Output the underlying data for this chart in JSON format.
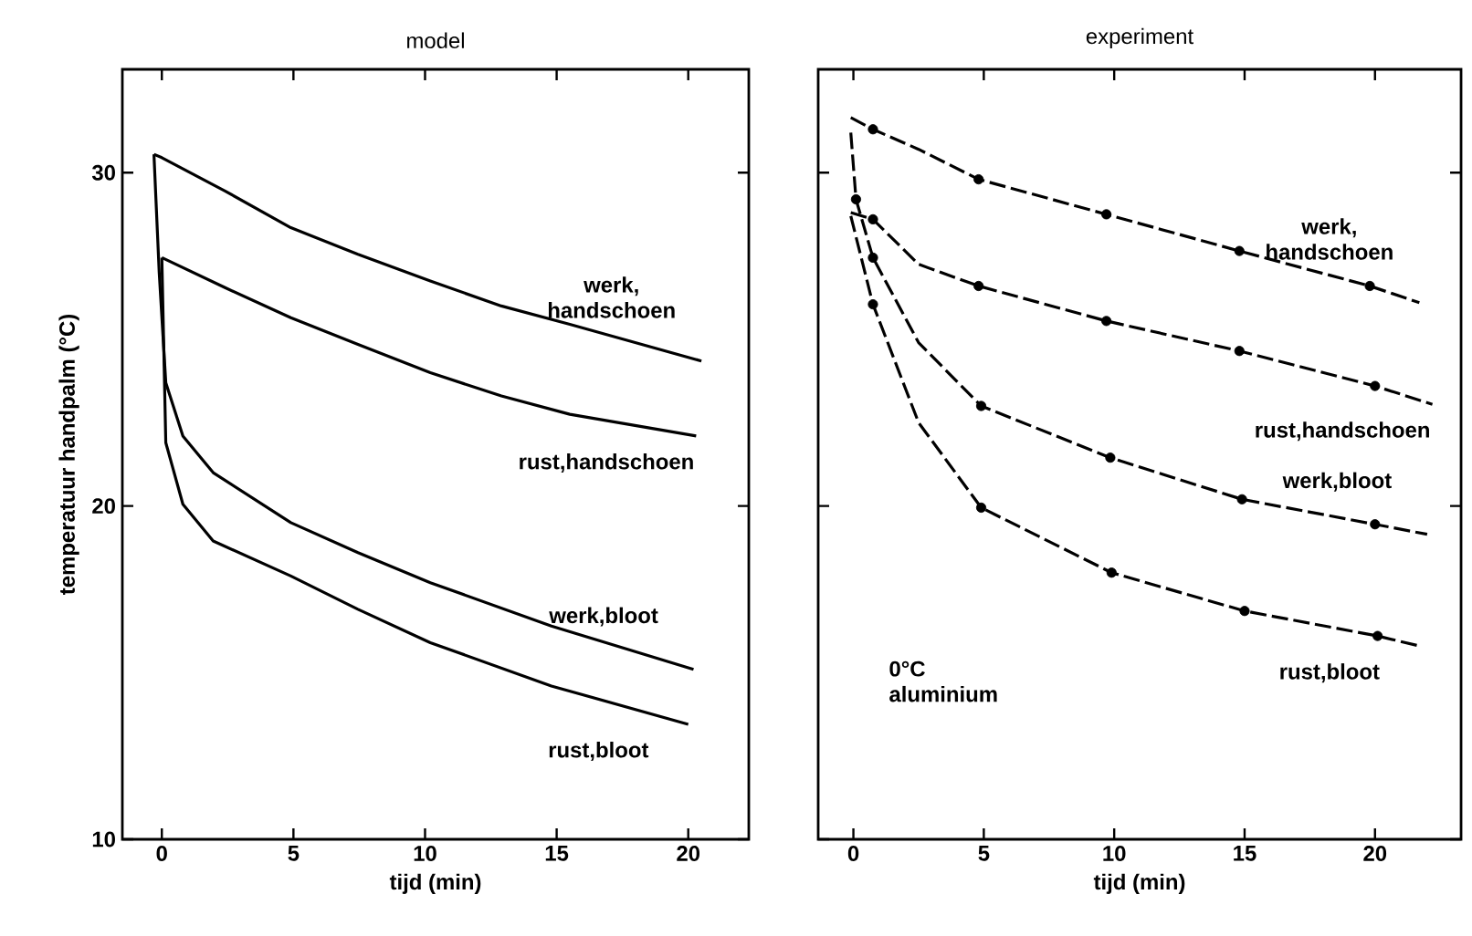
{
  "chart_data": [
    {
      "type": "line",
      "title": "model",
      "xlabel": "tijd (min)",
      "ylabel": "temperatuur handpalm (°C)",
      "xlim": [
        -1.5,
        22.3
      ],
      "ylim": [
        10,
        33.1
      ],
      "xticks": [
        0,
        5,
        10,
        15,
        20
      ],
      "yticks": [
        10,
        20,
        30
      ],
      "line_style": "solid",
      "marker": "none",
      "series": [
        {
          "name": "werk, handschoen",
          "color": "#000000",
          "x": [
            -0.3,
            0,
            2.4,
            4.9,
            7.45,
            10.2,
            12.9,
            15.5,
            20.5
          ],
          "values": [
            30.55,
            30.45,
            29.45,
            28.35,
            27.55,
            26.75,
            26.0,
            25.45,
            24.35
          ]
        },
        {
          "name": "rust,handschoen",
          "color": "#000000",
          "x": [
            0,
            2.4,
            4.9,
            7.45,
            10.2,
            12.9,
            15.5,
            20.3
          ],
          "values": [
            27.45,
            26.55,
            25.65,
            24.85,
            24.0,
            23.3,
            22.75,
            22.1
          ]
        },
        {
          "name": "werk,bloot",
          "color": "#000000",
          "x": [
            -0.3,
            -0.1,
            0.15,
            0.8,
            1.95,
            4.9,
            7.45,
            10.2,
            14.8,
            20.2
          ],
          "values": [
            30.55,
            27.0,
            23.7,
            22.1,
            21.0,
            19.5,
            18.6,
            17.7,
            16.4,
            15.1
          ]
        },
        {
          "name": "rust,bloot",
          "color": "#000000",
          "x": [
            0,
            0.15,
            0.8,
            1.95,
            4.9,
            7.45,
            10.2,
            14.8,
            20.0
          ],
          "values": [
            27.45,
            21.9,
            20.05,
            18.95,
            17.9,
            16.9,
            15.9,
            14.6,
            13.45
          ]
        }
      ]
    },
    {
      "type": "line",
      "title": "experiment",
      "xlabel": "tijd (min)",
      "xlim": [
        -1.35,
        23.3
      ],
      "ylim": [
        10,
        33.1
      ],
      "xticks": [
        0,
        5,
        10,
        15,
        20
      ],
      "yticks": [
        10,
        20,
        30
      ],
      "tick_labels": "x",
      "annotations": [
        "0°C aluminium"
      ],
      "series": [
        {
          "name": "werk, handschoen",
          "color": "#000000",
          "line_style": "dashed",
          "marker": "none",
          "x": [
            -0.1,
            0.75,
            2.5,
            4.8,
            9.7,
            14.8,
            19.8,
            21.7
          ],
          "values": [
            31.65,
            31.3,
            30.7,
            29.8,
            28.75,
            27.65,
            26.6,
            26.1
          ]
        },
        {
          "name": "rust,handschoen",
          "color": "#000000",
          "line_style": "dashed",
          "marker": "none",
          "x": [
            -0.1,
            0.75,
            2.5,
            4.8,
            9.7,
            14.8,
            20.0,
            22.2
          ],
          "values": [
            28.8,
            28.6,
            27.25,
            26.6,
            25.55,
            24.65,
            23.6,
            23.05
          ]
        },
        {
          "name": "werk,bloot",
          "color": "#000000",
          "line_style": "dashed",
          "marker": "none",
          "x": [
            -0.1,
            0.1,
            0.75,
            2.5,
            4.9,
            9.85,
            14.9,
            20.0,
            22.0
          ],
          "values": [
            31.2,
            29.2,
            27.45,
            24.9,
            23.0,
            21.45,
            20.2,
            19.45,
            19.15
          ]
        },
        {
          "name": "rust,bloot",
          "color": "#000000",
          "line_style": "dashed",
          "marker": "none",
          "x": [
            -0.1,
            0.75,
            2.5,
            4.9,
            9.9,
            15.0,
            20.1,
            21.7
          ],
          "values": [
            28.7,
            26.05,
            22.5,
            19.95,
            18.0,
            16.85,
            16.1,
            15.8
          ]
        },
        {
          "type": "scatter",
          "color": "#000000",
          "marker": "circle",
          "x": [
            0.75,
            4.8,
            9.7,
            14.8,
            19.8
          ],
          "values": [
            31.3,
            29.8,
            28.75,
            27.65,
            26.6
          ]
        },
        {
          "type": "scatter",
          "color": "#000000",
          "marker": "circle",
          "x": [
            0.75,
            4.8,
            9.7,
            14.8,
            20.0
          ],
          "values": [
            28.6,
            26.6,
            25.55,
            24.65,
            23.6
          ]
        },
        {
          "type": "scatter",
          "color": "#000000",
          "marker": "circle",
          "x": [
            0.1,
            0.75,
            4.9,
            9.85,
            14.9,
            20.0
          ],
          "values": [
            29.2,
            27.45,
            23.0,
            21.45,
            20.2,
            19.45
          ]
        },
        {
          "type": "scatter",
          "color": "#000000",
          "marker": "circle",
          "x": [
            0.75,
            4.9,
            9.9,
            15.0,
            20.1
          ],
          "values": [
            26.05,
            19.95,
            18.0,
            16.85,
            16.1
          ]
        }
      ]
    }
  ]
}
